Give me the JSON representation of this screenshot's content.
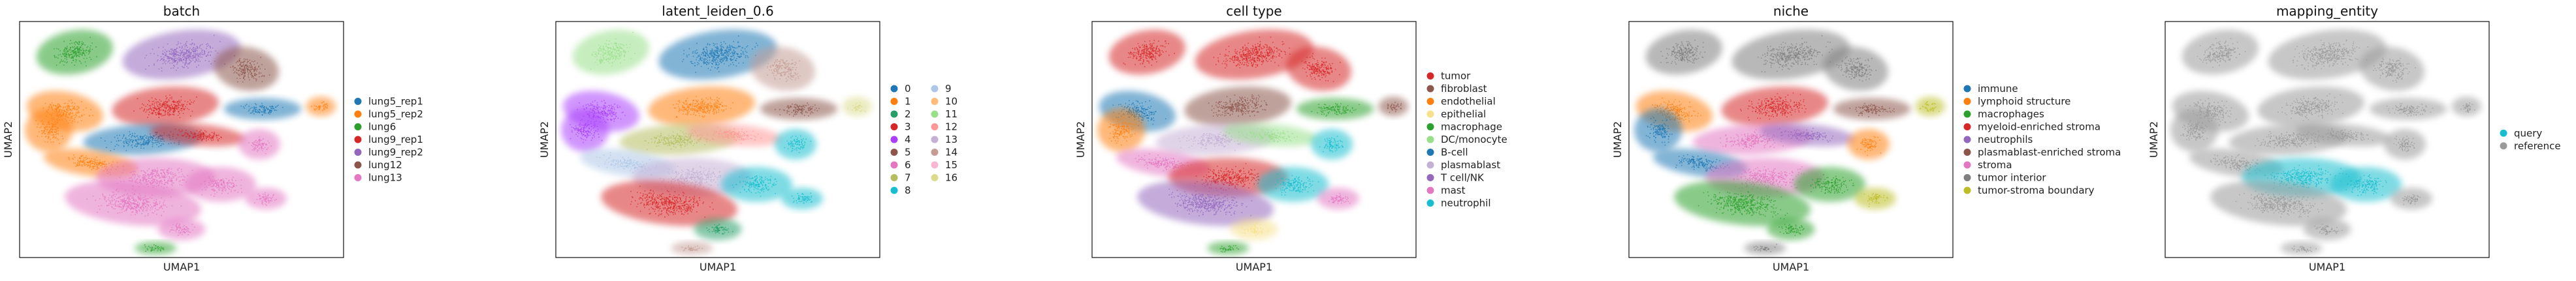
{
  "chart_data": [
    {
      "type": "scatter",
      "title": "batch",
      "xlabel": "UMAP1",
      "ylabel": "UMAP2",
      "grid": false,
      "legend": "right",
      "legend_columns": 1,
      "series": [
        {
          "name": "lung5_rep1",
          "color": "#1f77b4"
        },
        {
          "name": "lung5_rep2",
          "color": "#ff7f0e"
        },
        {
          "name": "lung6",
          "color": "#2ca02c"
        },
        {
          "name": "lung9_rep1",
          "color": "#d62728"
        },
        {
          "name": "lung9_rep2",
          "color": "#9467bd"
        },
        {
          "name": "lung12",
          "color": "#8c564b"
        },
        {
          "name": "lung13",
          "color": "#e377c2"
        }
      ]
    },
    {
      "type": "scatter",
      "title": "latent_leiden_0.6",
      "xlabel": "UMAP1",
      "ylabel": "UMAP2",
      "grid": false,
      "legend": "right",
      "legend_columns": 2,
      "series": [
        {
          "name": "0",
          "color": "#1f77b4"
        },
        {
          "name": "1",
          "color": "#ff7f0e"
        },
        {
          "name": "2",
          "color": "#279e68"
        },
        {
          "name": "3",
          "color": "#d62728"
        },
        {
          "name": "4",
          "color": "#aa40fc"
        },
        {
          "name": "5",
          "color": "#8c564b"
        },
        {
          "name": "6",
          "color": "#e377c2"
        },
        {
          "name": "7",
          "color": "#b5bd61"
        },
        {
          "name": "8",
          "color": "#17becf"
        },
        {
          "name": "9",
          "color": "#aec7e8"
        },
        {
          "name": "10",
          "color": "#ffbb78"
        },
        {
          "name": "11",
          "color": "#98df8a"
        },
        {
          "name": "12",
          "color": "#ff9896"
        },
        {
          "name": "13",
          "color": "#c5b0d5"
        },
        {
          "name": "14",
          "color": "#c49c94"
        },
        {
          "name": "15",
          "color": "#f7b6d2"
        },
        {
          "name": "16",
          "color": "#dbdb8d"
        }
      ]
    },
    {
      "type": "scatter",
      "title": "cell type",
      "xlabel": "UMAP1",
      "ylabel": "UMAP2",
      "grid": false,
      "legend": "right",
      "legend_columns": 1,
      "series": [
        {
          "name": "tumor",
          "color": "#d62728"
        },
        {
          "name": "fibroblast",
          "color": "#8c564b"
        },
        {
          "name": "endothelial",
          "color": "#ff7f0e"
        },
        {
          "name": "epithelial",
          "color": "#f7e08a"
        },
        {
          "name": "macrophage",
          "color": "#2ca02c"
        },
        {
          "name": "DC/monocyte",
          "color": "#98df8a"
        },
        {
          "name": "B-cell",
          "color": "#1f77b4"
        },
        {
          "name": "plasmablast",
          "color": "#c5b0d5"
        },
        {
          "name": "T cell/NK",
          "color": "#9467bd"
        },
        {
          "name": "mast",
          "color": "#e377c2"
        },
        {
          "name": "neutrophil",
          "color": "#17becf"
        }
      ]
    },
    {
      "type": "scatter",
      "title": "niche",
      "xlabel": "UMAP1",
      "ylabel": "UMAP2",
      "grid": false,
      "legend": "right",
      "legend_columns": 1,
      "series": [
        {
          "name": "immune",
          "color": "#1f77b4"
        },
        {
          "name": "lymphoid structure",
          "color": "#ff7f0e"
        },
        {
          "name": "macrophages",
          "color": "#2ca02c"
        },
        {
          "name": "myeloid-enriched stroma",
          "color": "#d62728"
        },
        {
          "name": "neutrophils",
          "color": "#9467bd"
        },
        {
          "name": "plasmablast-enriched stroma",
          "color": "#8c564b"
        },
        {
          "name": "stroma",
          "color": "#e377c2"
        },
        {
          "name": "tumor interior",
          "color": "#7f7f7f"
        },
        {
          "name": "tumor-stroma boundary",
          "color": "#bcbd22"
        }
      ]
    },
    {
      "type": "scatter",
      "title": "mapping_entity",
      "xlabel": "UMAP1",
      "ylabel": "UMAP2",
      "grid": false,
      "legend": "right",
      "legend_columns": 1,
      "series": [
        {
          "name": "query",
          "color": "#17becf"
        },
        {
          "name": "reference",
          "color": "#9a9a9a"
        }
      ]
    }
  ]
}
